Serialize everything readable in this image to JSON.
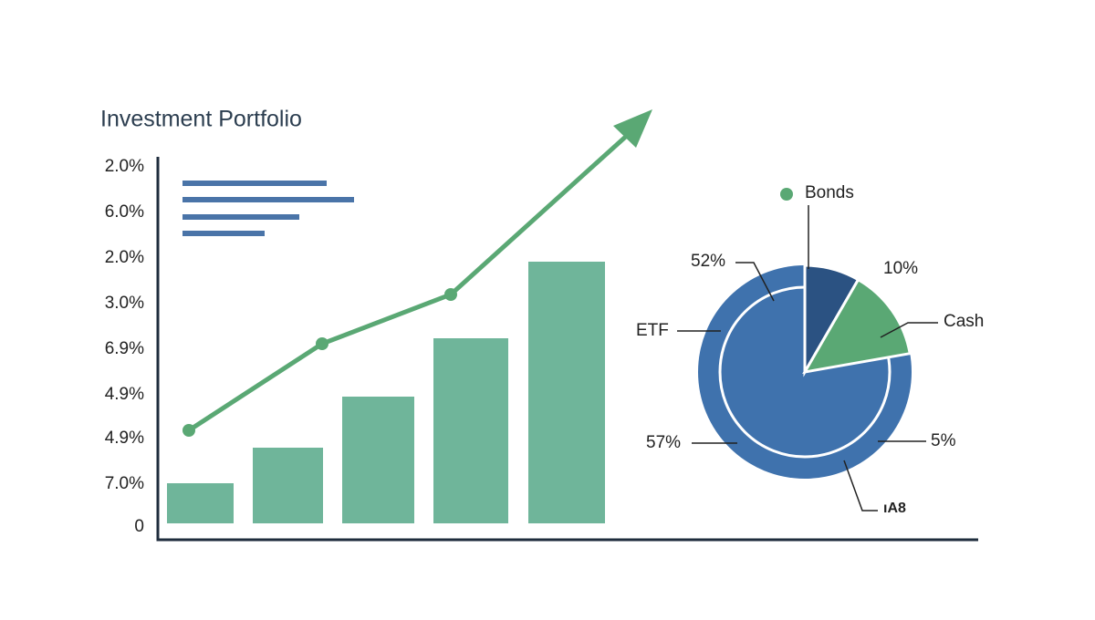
{
  "title": "Investment Portfolio",
  "y_axis_labels": [
    "2.0%",
    "6.0%",
    "2.0%",
    "3.0%",
    "6.9%",
    "4.9%",
    "4.9%",
    "7.0%",
    "0"
  ],
  "pie_labels": {
    "legend": "Bonds",
    "top_left": "52%",
    "top_right": "10%",
    "left": "ETF",
    "right": "Cash",
    "bottom_left": "57%",
    "bottom_right": "5%",
    "bottom": "ıA8"
  }
}
